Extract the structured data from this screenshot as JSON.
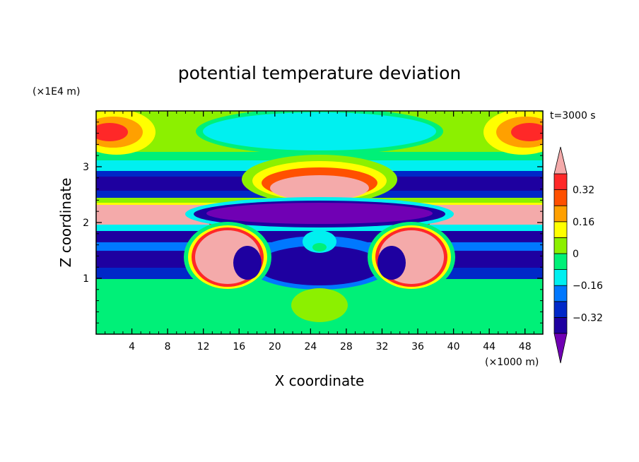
{
  "chart_data": {
    "type": "heatmap",
    "title": "potential temperature deviation",
    "xlabel": "X coordinate",
    "ylabel": "Z coordinate",
    "x_unit": "(×1000 m)",
    "y_unit": "(×1E4 m)",
    "time_label": "t=3000 s",
    "xlim": [
      0,
      50
    ],
    "ylim": [
      0,
      4
    ],
    "x_ticks": [
      4,
      8,
      12,
      16,
      20,
      24,
      28,
      32,
      36,
      40,
      44,
      48
    ],
    "y_ticks": [
      1,
      2,
      3
    ],
    "colorbar": {
      "levels": [
        -0.4,
        -0.32,
        -0.24,
        -0.16,
        -0.08,
        0,
        0.08,
        0.16,
        0.24,
        0.32,
        0.4
      ],
      "tick_labels": [
        {
          "value": 0.32,
          "label": "0.32"
        },
        {
          "value": 0.16,
          "label": "0.16"
        },
        {
          "value": 0,
          "label": "0"
        },
        {
          "value": -0.16,
          "label": "−0.16"
        },
        {
          "value": -0.32,
          "label": "−0.32"
        }
      ],
      "colors": [
        "#7000b4",
        "#1e00a0",
        "#0028c8",
        "#0078ff",
        "#00f0f0",
        "#00f078",
        "#8cf000",
        "#ffff00",
        "#ffa000",
        "#ff5000",
        "#ff2828",
        "#f4aaaa"
      ],
      "extend": "both"
    }
  }
}
